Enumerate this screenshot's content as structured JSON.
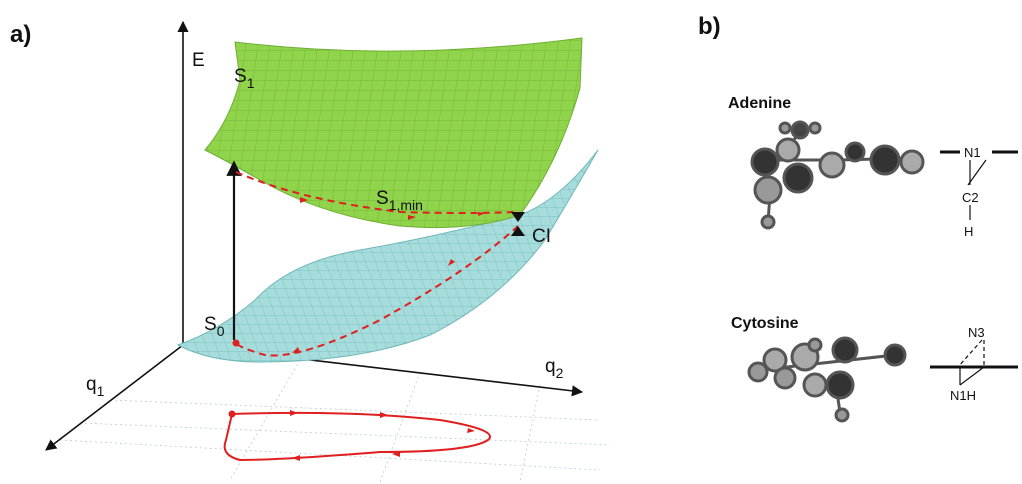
{
  "panel_a": {
    "label": "a)",
    "axes": {
      "energy": "E",
      "q1": {
        "base": "q",
        "sub": "1"
      },
      "q2": {
        "base": "q",
        "sub": "2"
      }
    },
    "states": {
      "s1": {
        "base": "S",
        "sub": "1"
      },
      "s1min": {
        "base": "S",
        "sub": "1,min"
      },
      "s0": {
        "base": "S",
        "sub": "0"
      },
      "ci": "CI"
    }
  },
  "panel_b": {
    "label": "b)",
    "adenine": {
      "name": "Adenine",
      "atoms": [
        "N1",
        "C2",
        "H"
      ]
    },
    "cytosine": {
      "name": "Cytosine",
      "atoms": [
        "N3",
        "N1H"
      ]
    }
  }
}
